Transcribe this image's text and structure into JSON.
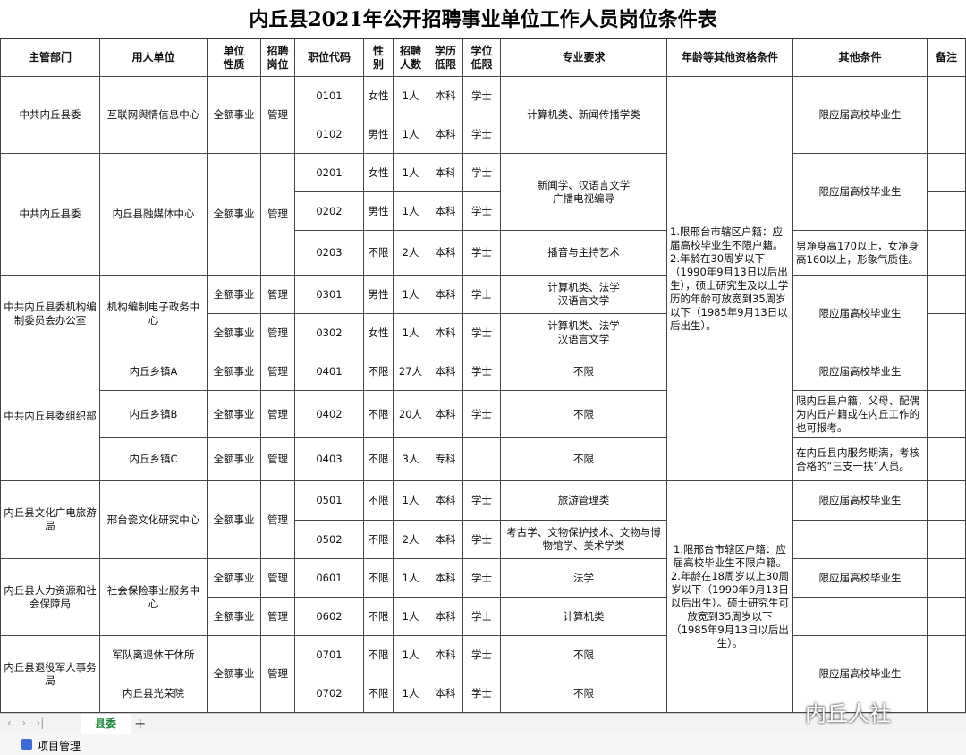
{
  "header": {
    "title": "内丘县2021年公开招聘事业单位工作人员岗位条件表"
  },
  "table": {
    "columns": [
      "主管部门",
      "用人单位",
      "单位\n性质",
      "招聘\n岗位",
      "职位代码",
      "性\n别",
      "招聘\n人数",
      "学历\n低限",
      "学位\n低限",
      "专业要求",
      "年龄等其他资格条件",
      "其他条件",
      "备注"
    ],
    "rows": [
      [
        "中共内丘县委",
        "互联网舆情信息中心",
        "全额事业",
        "管理",
        "0101",
        "女性",
        "1人",
        "本科",
        "学士",
        "计算机类、新闻传播学类",
        "1.限邢台市辖区户籍：应届高校毕业生不限户籍。\n2.年龄在30周岁以下（1990年9月13日以后出生），硕士研究生及以上学历的年龄可放宽到35周岁以下（1985年9月13日以后出生）。",
        "限应届高校毕业生",
        null
      ],
      [
        null,
        null,
        null,
        null,
        "0102",
        "男性",
        "1人",
        "本科",
        "学士",
        null,
        null,
        null,
        null
      ],
      [
        "中共内丘县委",
        "内丘县融媒体中心",
        "全额事业",
        "管理",
        "0201",
        "女性",
        "1人",
        "本科",
        "学士",
        "新闻学、汉语言文学\n广播电视编导",
        null,
        "限应届高校毕业生",
        null
      ],
      [
        null,
        null,
        null,
        null,
        "0202",
        "男性",
        "1人",
        "本科",
        "学士",
        null,
        null,
        null,
        null
      ],
      [
        null,
        null,
        null,
        null,
        "0203",
        "不限",
        "2人",
        "本科",
        "学士",
        "播音与主持艺术",
        null,
        "男净身高170以上，女净身高160以上，形象气质佳。",
        null
      ],
      [
        "中共内丘县委机构编制委员会办公室",
        "机构编制电子政务中心",
        "全额事业",
        "管理",
        "0301",
        "男性",
        "1人",
        "本科",
        "学士",
        "计算机类、法学\n汉语言文学",
        null,
        "限应届高校毕业生",
        null
      ],
      [
        null,
        null,
        "全额事业",
        "管理",
        "0302",
        "女性",
        "1人",
        "本科",
        "学士",
        "计算机类、法学\n汉语言文学",
        null,
        null,
        null
      ],
      [
        "中共内丘县委组织部",
        "内丘乡镇A",
        "全额事业",
        "管理",
        "0401",
        "不限",
        "27人",
        "本科",
        "学士",
        "不限",
        null,
        "限应届高校毕业生",
        null
      ],
      [
        null,
        "内丘乡镇B",
        "全额事业",
        "管理",
        "0402",
        "不限",
        "20人",
        "本科",
        "学士",
        "不限",
        null,
        "限内丘县户籍，父母、配偶为内丘户籍或在内丘工作的也可报考。",
        null
      ],
      [
        null,
        "内丘乡镇C",
        "全额事业",
        "管理",
        "0403",
        "不限",
        "3人",
        "专科",
        null,
        "不限",
        null,
        "在内丘县内服务期满，考核合格的“三支一扶”人员。",
        null
      ],
      [
        "内丘县文化广电旅游局",
        "邢台瓷文化研究中心",
        "全额事业",
        "管理",
        "0501",
        "不限",
        "1人",
        "本科",
        "学士",
        "旅游管理类",
        "1.限邢台市辖区户籍：应届高校毕业生不限户籍。\n2.年龄在18周岁以上30周岁以下（1990年9月13日以后出生）。硕士研究生可放宽到35周岁以下（1985年9月13日以后出生）。",
        "限应届高校毕业生",
        null
      ],
      [
        null,
        null,
        null,
        null,
        "0502",
        "不限",
        "2人",
        "本科",
        "学士",
        "考古学、文物保护技术、文物与博物馆学、美术学类",
        null,
        null,
        null
      ],
      [
        "内丘县人力资源和社会保障局",
        "社会保险事业服务中心",
        "全额事业",
        "管理",
        "0601",
        "不限",
        "1人",
        "本科",
        "学士",
        "法学",
        null,
        "限应届高校毕业生",
        null
      ],
      [
        null,
        null,
        "全额事业",
        "管理",
        "0602",
        "不限",
        "1人",
        "本科",
        "学士",
        "计算机类",
        null,
        null,
        null
      ],
      [
        "内丘县退役军人事务局",
        "军队离退休干休所",
        "全额事业",
        "管理",
        "0701",
        "不限",
        "1人",
        "本科",
        "学士",
        "不限",
        null,
        "限应届高校毕业生",
        null
      ],
      [
        null,
        "内丘县光荣院",
        null,
        null,
        "0702",
        "不限",
        "1人",
        "本科",
        "学士",
        "不限",
        null,
        null,
        null
      ]
    ]
  },
  "footer": {
    "sheet_tab": "县委",
    "status": "项目管理",
    "watermark": "内丘人社"
  }
}
